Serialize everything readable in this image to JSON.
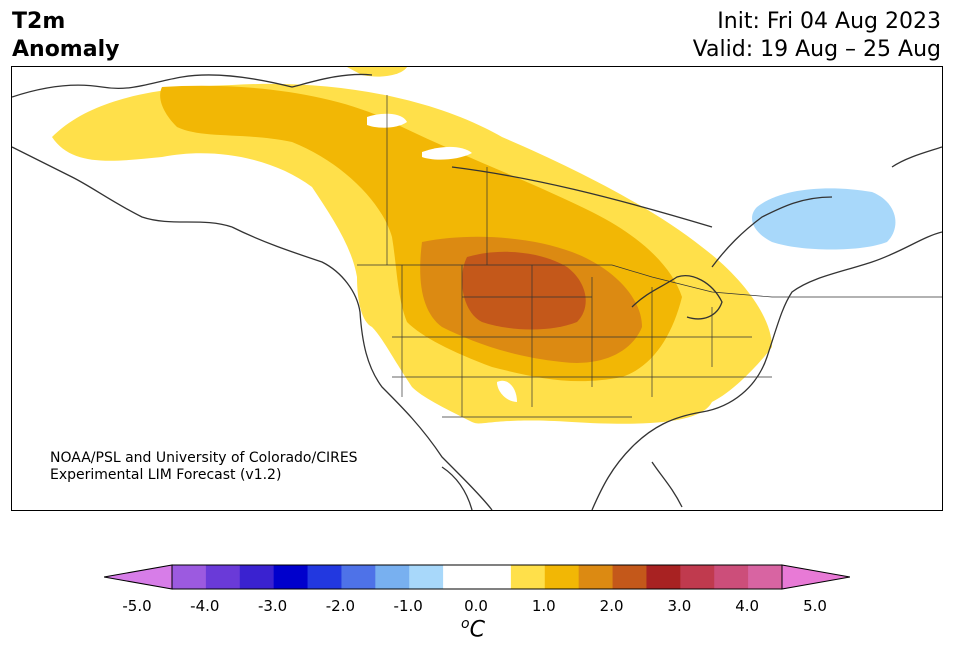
{
  "header": {
    "title_line1": "T2m",
    "title_line2": "Anomaly",
    "init": "Init: Fri 04 Aug 2023",
    "valid": "Valid: 19 Aug – 25 Aug"
  },
  "credit": {
    "line1": "NOAA/PSL and University of Colorado/CIRES",
    "line2": "Experimental LIM Forecast (v1.2)"
  },
  "colorbar": {
    "ticks": [
      "-5.0",
      "-4.0",
      "-3.0",
      "-2.0",
      "-1.0",
      "0.0",
      "1.0",
      "2.0",
      "3.0",
      "4.0",
      "5.0"
    ],
    "unit_sup": "o",
    "unit_main": "C",
    "colors": [
      "#d77de8",
      "#9c5ae0",
      "#6a3ad8",
      "#3a22d0",
      "#0000cc",
      "#2238e0",
      "#4e72e8",
      "#78b0f0",
      "#a8d8fa",
      "#ffffff",
      "#ffffff",
      "#ffe04a",
      "#f2b705",
      "#dc8a12",
      "#c4581a",
      "#a82222",
      "#c03a4e",
      "#cc4e7a",
      "#d864a2",
      "#e87ad6"
    ]
  },
  "map": {
    "anomaly_colors": {
      "plus_0_5": "#ffe04a",
      "plus_1_0": "#f2b705",
      "plus_1_5": "#dc8a12",
      "plus_2_0": "#c4581a",
      "minus_0_5": "#a8d8fa"
    }
  }
}
